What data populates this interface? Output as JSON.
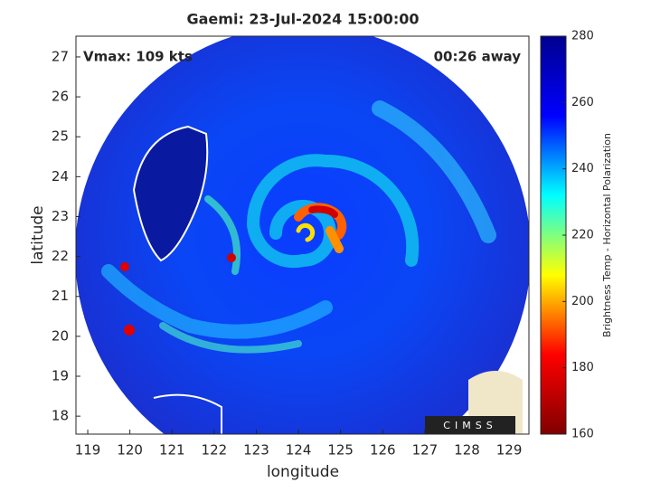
{
  "chart_data": {
    "type": "image",
    "title": "Gaemi: 23-Jul-2024 15:00:00",
    "annotations": [
      "Vmax: 109 kts",
      "00:26 away"
    ],
    "x_label": "longitude",
    "y_label": "latitude",
    "xlim": [
      118.72,
      129.47
    ],
    "xticks": [
      119,
      120,
      121,
      122,
      123,
      124,
      125,
      126,
      127,
      128,
      129
    ],
    "ylim": [
      17.55,
      27.52
    ],
    "yticks": [
      18,
      19,
      20,
      21,
      22,
      23,
      24,
      25,
      26,
      27
    ],
    "colorbar": {
      "label": "Brightness Temp - Horizontal Polarization",
      "lim": [
        160,
        280
      ],
      "ticks": [
        160,
        180,
        200,
        220,
        240,
        260,
        280
      ]
    },
    "colormap": [
      "#800000",
      "#ff0000",
      "#ffff00",
      "#00ffff",
      "#0000ff",
      "#00008f"
    ],
    "logo": "CIMSS"
  }
}
